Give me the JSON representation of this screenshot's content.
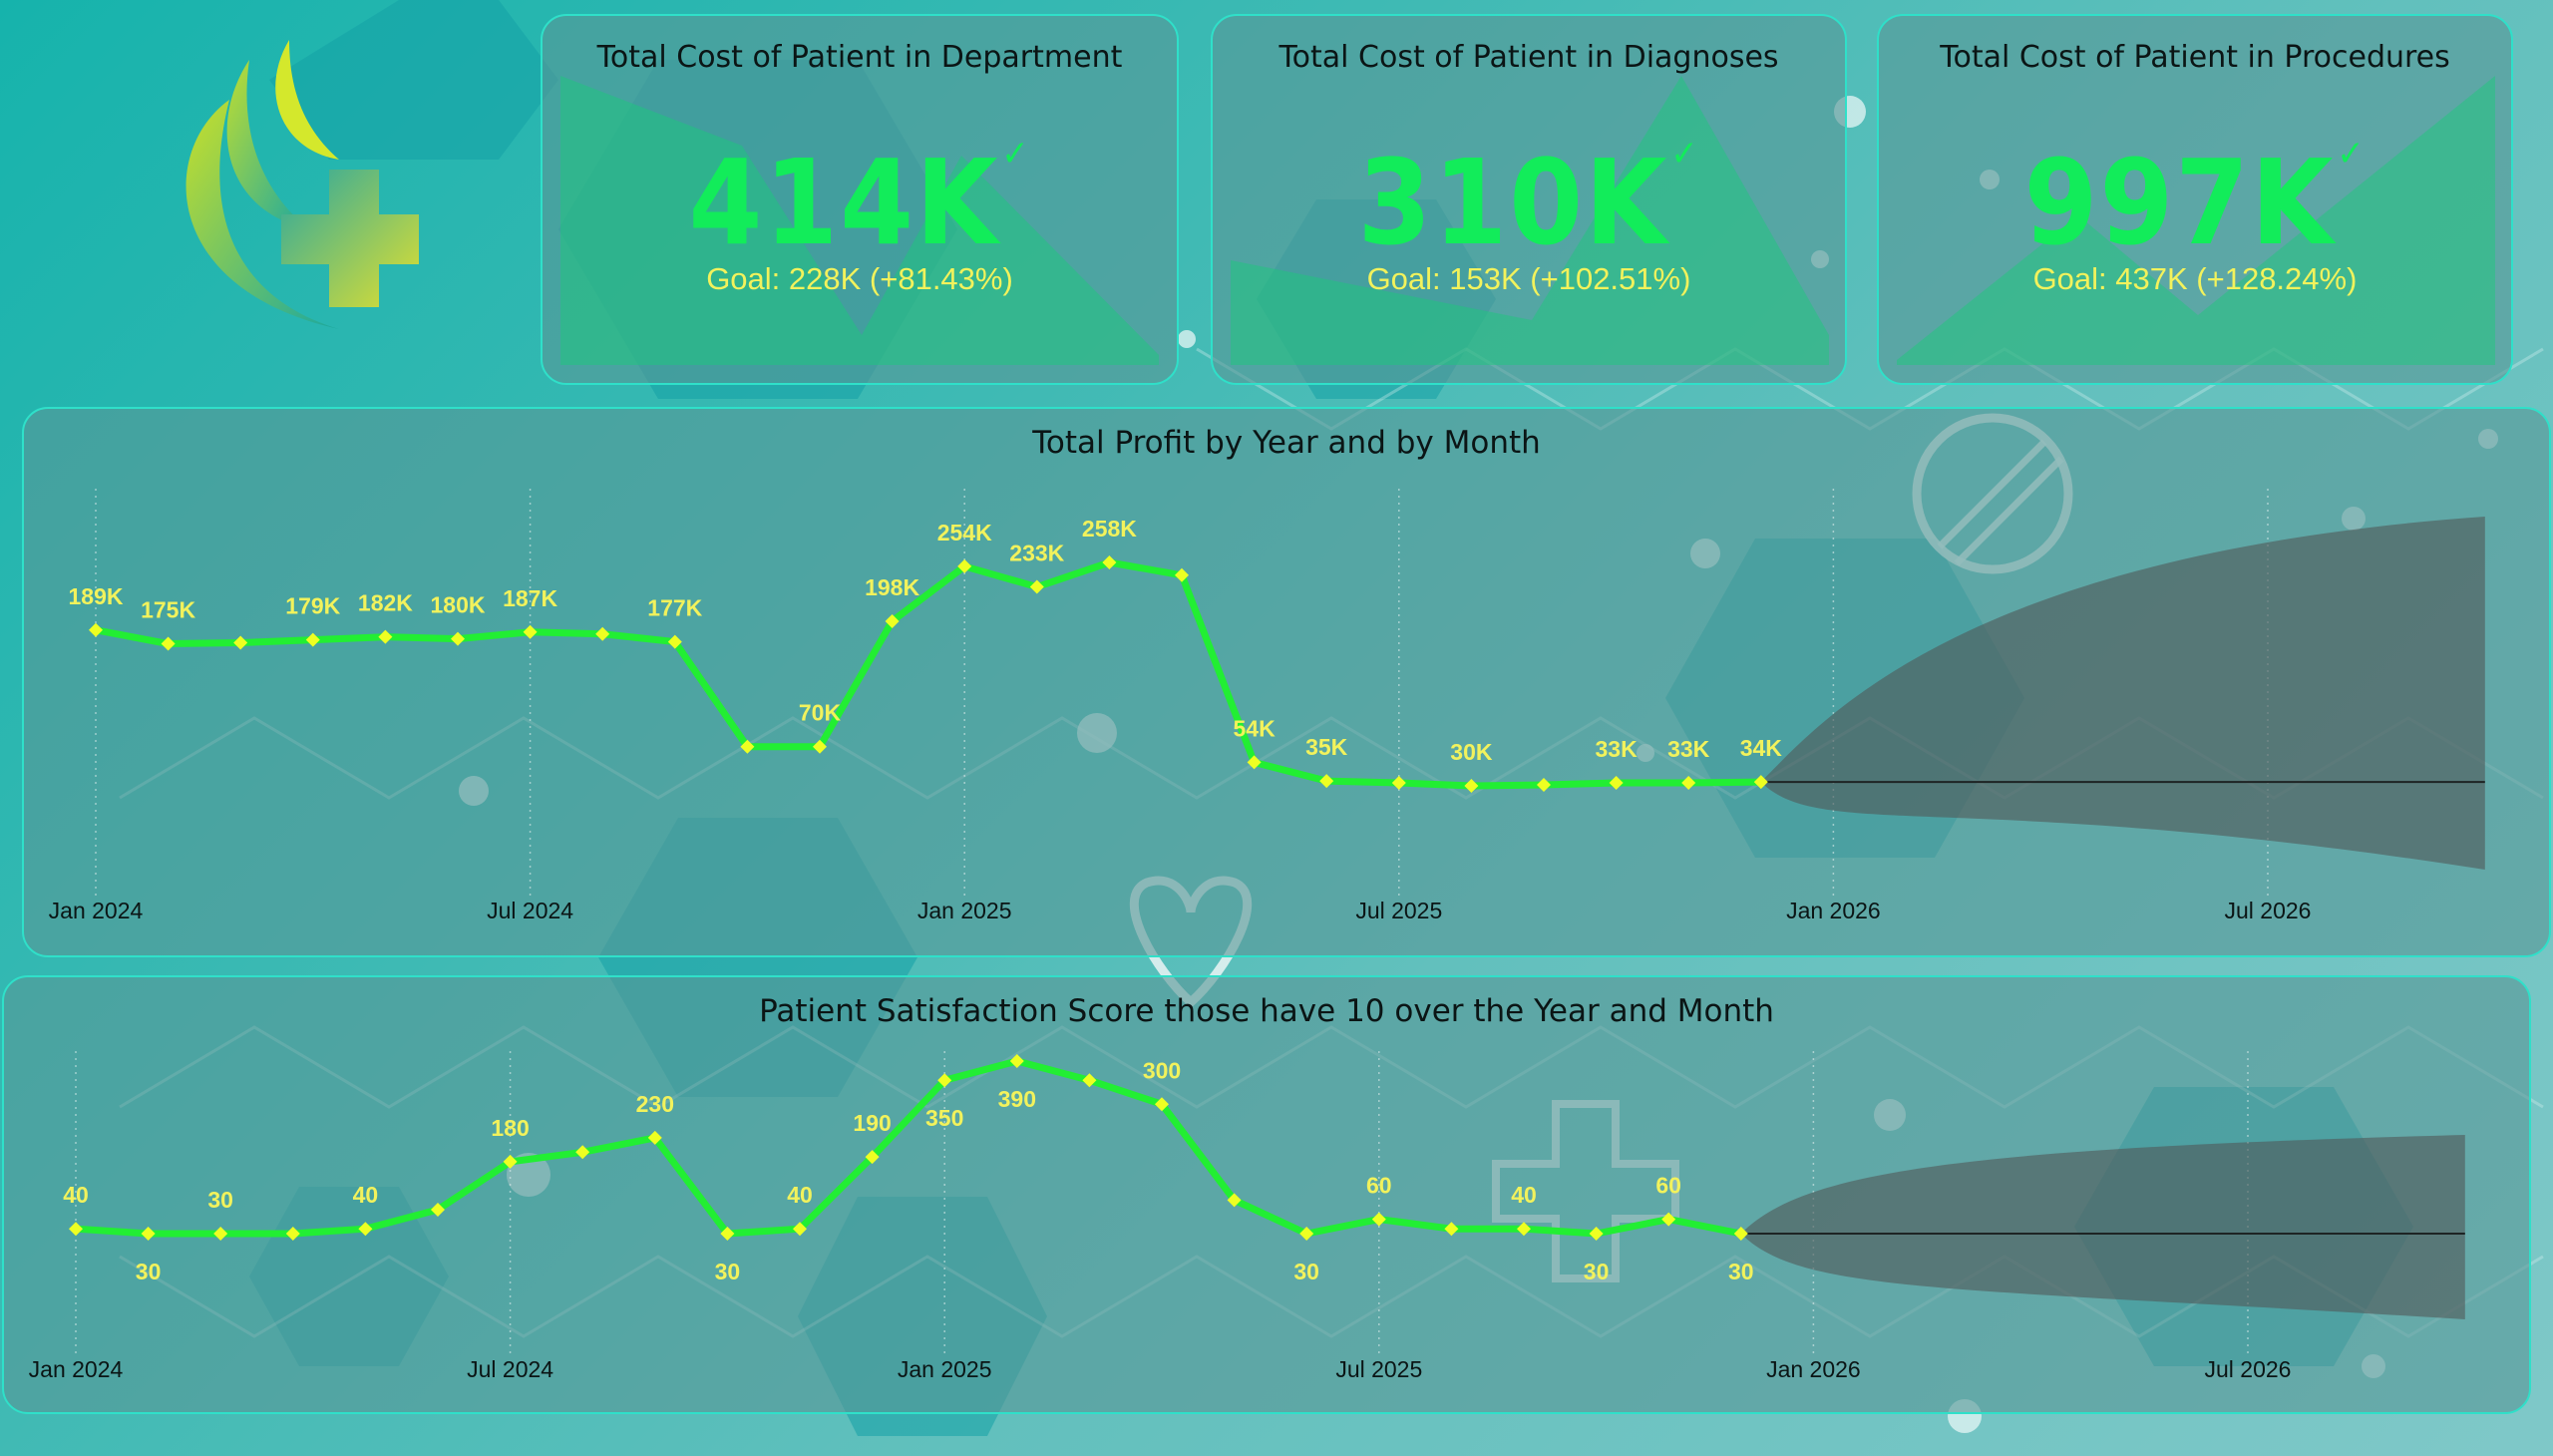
{
  "colors": {
    "accent_line": "#22ee33",
    "marker": "#eeff22",
    "label": "#f2f25c",
    "kpi_value": "#12ec5a",
    "border": "#2fe0c9",
    "title": "#0b1515",
    "forecast": "#505a5a"
  },
  "logo": {
    "icon": "medical-cross-logo"
  },
  "kpis": [
    {
      "title": "Total Cost of Patient in Department",
      "value": "414K",
      "goal": "Goal: 228K (+81.43%)",
      "status_icon": "check-icon"
    },
    {
      "title": "Total Cost of Patient in Diagnoses",
      "value": "310K",
      "goal": "Goal: 153K (+102.51%)",
      "status_icon": "check-icon"
    },
    {
      "title": "Total Cost of Patient in Procedures",
      "value": "997K",
      "goal": "Goal: 437K (+128.24%)",
      "status_icon": "check-icon"
    }
  ],
  "chart_data": [
    {
      "type": "line",
      "title": "Total Profit by Year and by Month",
      "x": [
        "2024-01",
        "2024-02",
        "2024-03",
        "2024-04",
        "2024-05",
        "2024-06",
        "2024-07",
        "2024-08",
        "2024-09",
        "2024-10",
        "2024-11",
        "2024-12",
        "2025-01",
        "2025-02",
        "2025-03",
        "2025-04",
        "2025-05",
        "2025-06",
        "2025-07",
        "2025-08",
        "2025-09",
        "2025-10",
        "2025-11",
        "2025-12"
      ],
      "values": [
        189000,
        175000,
        176000,
        179000,
        182000,
        180000,
        187000,
        185000,
        177000,
        70000,
        70000,
        198000,
        254000,
        233000,
        258000,
        245000,
        54000,
        35000,
        33000,
        30000,
        31000,
        33000,
        33000,
        34000
      ],
      "labels": [
        "189K",
        "175K",
        "",
        "179K",
        "182K",
        "180K",
        "187K",
        "",
        "177K",
        "",
        "70K",
        "198K",
        "254K",
        "233K",
        "258K",
        "",
        "54K",
        "35K",
        "",
        "30K",
        "",
        "33K",
        "33K",
        "34K"
      ],
      "xticks": [
        "Jan 2024",
        "Jul 2024",
        "Jan 2025",
        "Jul 2025",
        "Jan 2026",
        "Jul 2026"
      ],
      "forecast": {
        "start": "2025-12",
        "end": "2026-10"
      }
    },
    {
      "type": "line",
      "title": "Patient Satisfaction Score those have 10 over the Year and Month",
      "x": [
        "2024-01",
        "2024-02",
        "2024-03",
        "2024-04",
        "2024-05",
        "2024-06",
        "2024-07",
        "2024-08",
        "2024-09",
        "2024-10",
        "2024-11",
        "2024-12",
        "2025-01",
        "2025-02",
        "2025-03",
        "2025-04",
        "2025-05",
        "2025-06",
        "2025-07",
        "2025-08",
        "2025-09",
        "2025-10",
        "2025-11",
        "2025-12"
      ],
      "values": [
        40,
        30,
        30,
        30,
        40,
        80,
        180,
        200,
        230,
        30,
        40,
        190,
        350,
        390,
        350,
        300,
        100,
        30,
        60,
        40,
        40,
        30,
        60,
        30
      ],
      "labels": [
        "40",
        "30",
        "30",
        "",
        "40",
        "",
        "180",
        "",
        "230",
        "30",
        "40",
        "190",
        "350",
        "390",
        "",
        "300",
        "",
        "30",
        "60",
        "",
        "40",
        "30",
        "60",
        "30"
      ],
      "label_pos": [
        "a",
        "b",
        "a",
        "",
        "a",
        "",
        "a",
        "",
        "a",
        "b",
        "a",
        "a",
        "b",
        "b",
        "",
        "a",
        "",
        "b",
        "a",
        "",
        "a",
        "b",
        "a",
        "b"
      ],
      "xticks": [
        "Jan 2024",
        "Jul 2024",
        "Jan 2025",
        "Jul 2025",
        "Jan 2026",
        "Jul 2026"
      ],
      "forecast": {
        "start": "2025-12",
        "end": "2026-10"
      }
    }
  ]
}
